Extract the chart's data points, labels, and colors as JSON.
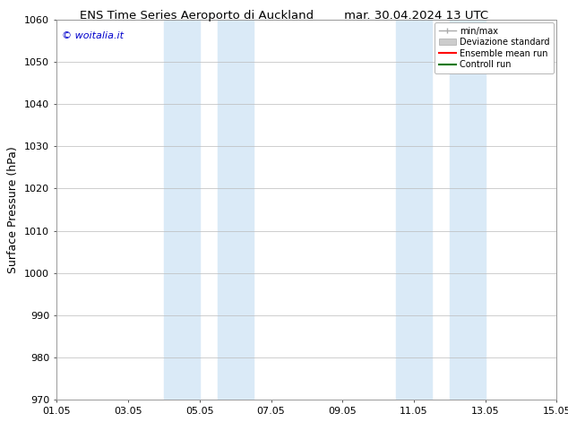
{
  "title_left": "ENS Time Series Aeroporto di Auckland",
  "title_right": "mar. 30.04.2024 13 UTC",
  "ylabel": "Surface Pressure (hPa)",
  "xlim_num": [
    0,
    14
  ],
  "ylim": [
    970,
    1060
  ],
  "yticks": [
    970,
    980,
    990,
    1000,
    1010,
    1020,
    1030,
    1040,
    1050,
    1060
  ],
  "xticks_labels": [
    "01.05",
    "03.05",
    "05.05",
    "07.05",
    "09.05",
    "11.05",
    "13.05",
    "15.05"
  ],
  "xticks_pos": [
    0,
    2,
    4,
    6,
    8,
    10,
    12,
    14
  ],
  "shaded_bands": [
    {
      "xmin": 3.0,
      "xmax": 4.0,
      "color": "#daeaf7"
    },
    {
      "xmin": 4.5,
      "xmax": 5.5,
      "color": "#daeaf7"
    },
    {
      "xmin": 9.5,
      "xmax": 10.5,
      "color": "#daeaf7"
    },
    {
      "xmin": 11.0,
      "xmax": 12.0,
      "color": "#daeaf7"
    }
  ],
  "watermark_text": "© woitalia.it",
  "watermark_color": "#0000cc",
  "bg_color": "#ffffff",
  "grid_color": "#bbbbbb",
  "legend_items": [
    {
      "label": "min/max",
      "color": "#aaaaaa"
    },
    {
      "label": "Deviazione standard",
      "color": "#cccccc"
    },
    {
      "label": "Ensemble mean run",
      "color": "#ff0000"
    },
    {
      "label": "Controll run",
      "color": "#007700"
    }
  ],
  "title_fontsize": 9.5,
  "tick_fontsize": 8,
  "ylabel_fontsize": 9,
  "watermark_fontsize": 8
}
